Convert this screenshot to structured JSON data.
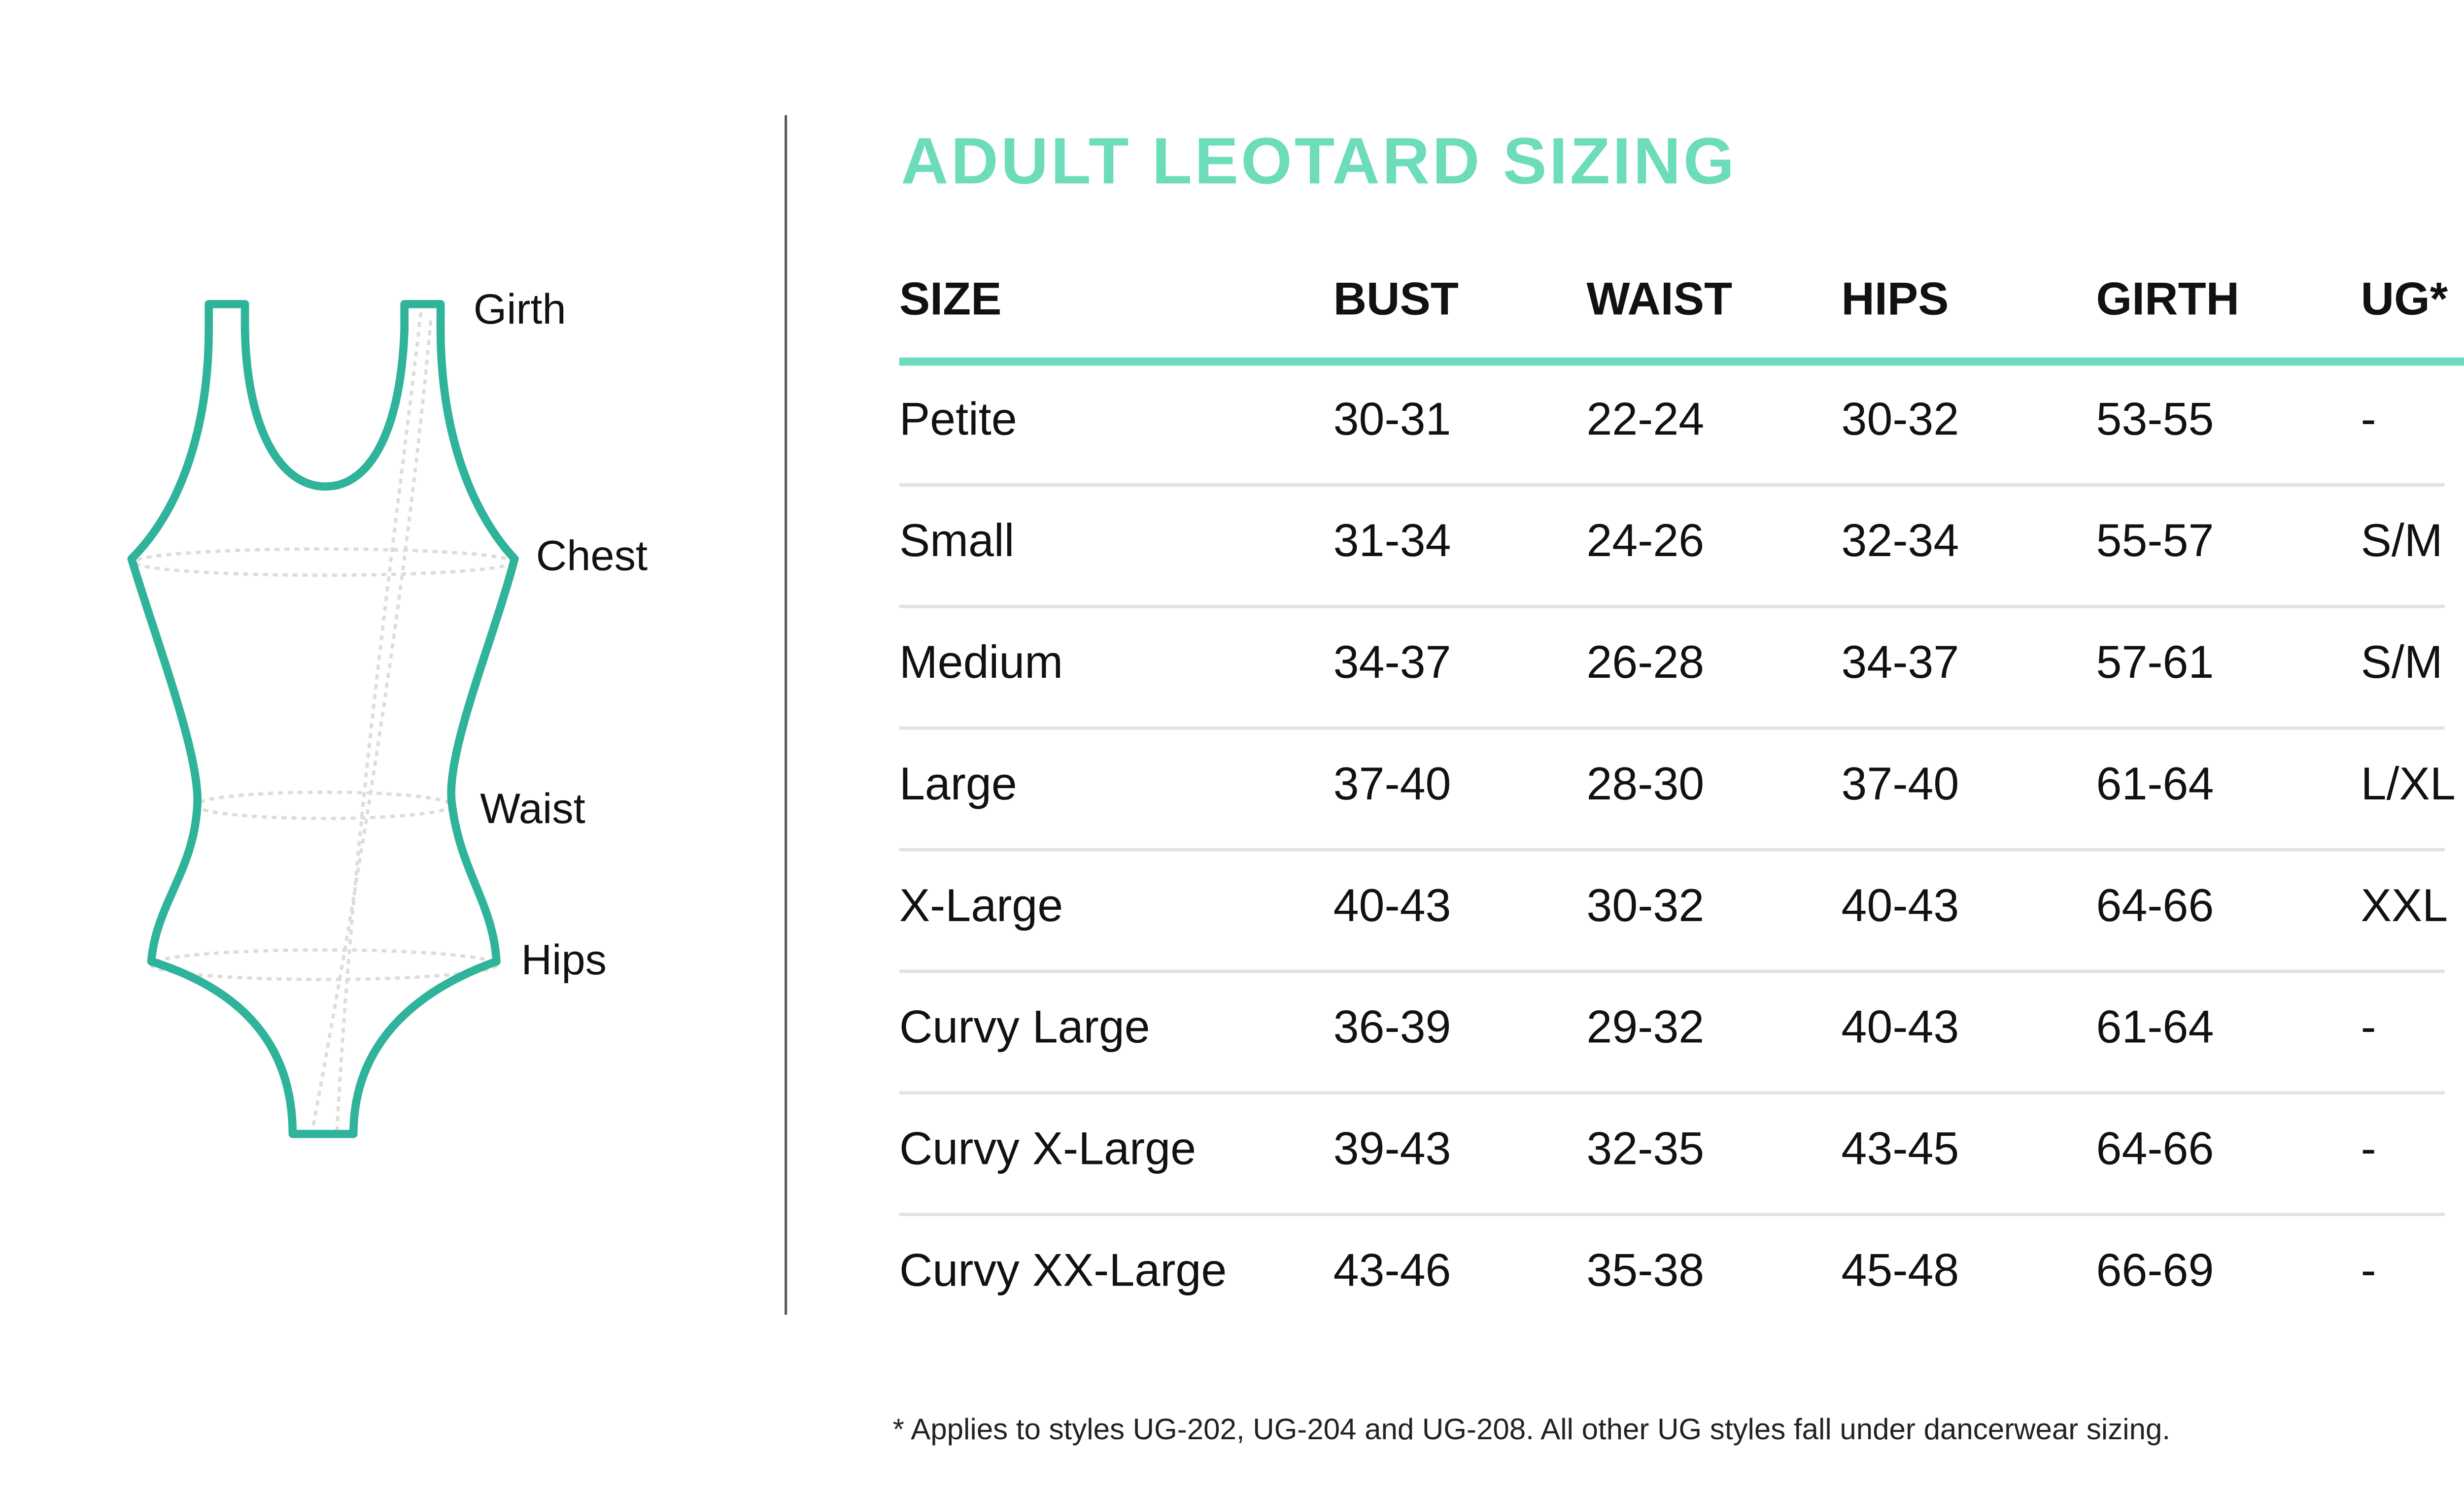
{
  "title": "ADULT LEOTARD SIZING",
  "diagram": {
    "labels": [
      "Girth",
      "Chest",
      "Waist",
      "Hips"
    ]
  },
  "table": {
    "header": [
      "SIZE",
      "BUST",
      "WAIST",
      "HIPS",
      "GIRTH",
      "UG*"
    ],
    "rows": [
      [
        "Petite",
        "30-31",
        "22-24",
        "30-32",
        "53-55",
        "-"
      ],
      [
        "Small",
        "31-34",
        "24-26",
        "32-34",
        "55-57",
        "S/M"
      ],
      [
        "Medium",
        "34-37",
        "26-28",
        "34-37",
        "57-61",
        "S/M"
      ],
      [
        "Large",
        "37-40",
        "28-30",
        "37-40",
        "61-64",
        "L/XL"
      ],
      [
        "X-Large",
        "40-43",
        "30-32",
        "40-43",
        "64-66",
        "XXL"
      ],
      [
        "Curvy Large",
        "36-39",
        "29-32",
        "40-43",
        "61-64",
        "-"
      ],
      [
        "Curvy X-Large",
        "39-43",
        "32-35",
        "43-45",
        "64-66",
        "-"
      ],
      [
        "Curvy XX-Large",
        "43-46",
        "35-38",
        "45-48",
        "66-69",
        "-"
      ]
    ]
  },
  "footnote": "* Applies to styles UG-202, UG-204 and UG-208. All other UG styles fall under dancerwear sizing."
}
